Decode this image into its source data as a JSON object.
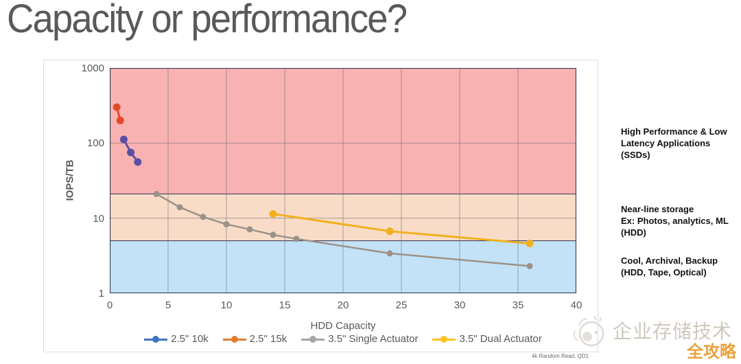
{
  "page": {
    "title": "Capacity or performance?"
  },
  "chart_data": {
    "type": "line",
    "title": "",
    "xlabel": "HDD Capacity",
    "ylabel": "IOPS/TB",
    "x_range": [
      0,
      40
    ],
    "x_ticks": [
      "0",
      "5",
      "10",
      "15",
      "20",
      "25",
      "30",
      "35",
      "40"
    ],
    "y_scale": "log",
    "y_range": [
      1,
      1000
    ],
    "y_ticks": [
      "1000",
      "100",
      "10",
      "1"
    ],
    "grid": "on",
    "legend_position": "bottom",
    "footnote": "4k Random Read, QD1",
    "bands": [
      {
        "name": "ssd-zone",
        "label": "High Performance & Low Latency Applications (SSDs)",
        "from": 21,
        "to": 1000,
        "color": "#f8b2b2"
      },
      {
        "name": "nearline-zone",
        "label": "Near-line storage Ex: Photos, analytics, ML (HDD)",
        "from": 5,
        "to": 21,
        "color": "#f9dcc7"
      },
      {
        "name": "cool-zone",
        "label": "Cool, Archival, Backup (HDD, Tape, Optical)",
        "from": 1,
        "to": 5,
        "color": "#c3e2f7"
      }
    ],
    "series": [
      {
        "name": "2.5\" 10k",
        "color": "#5b4ea5",
        "legend_color": "#3e74c0",
        "line_width": 3,
        "dot_r": 5.5,
        "points": [
          [
            1.2,
            112
          ],
          [
            1.8,
            75
          ],
          [
            2.4,
            56
          ]
        ]
      },
      {
        "name": "2.5\" 15k",
        "color": "#e2492a",
        "legend_color": "#e07e30",
        "line_width": 3,
        "dot_r": 5.5,
        "points": [
          [
            0.6,
            300
          ],
          [
            0.9,
            200
          ]
        ]
      },
      {
        "name": "3.5\" Single Actuator",
        "color": "#9b9289",
        "legend_color": "#a5a5a5",
        "line_width": 2.5,
        "dot_r": 4.5,
        "points": [
          [
            4,
            21
          ],
          [
            6,
            14
          ],
          [
            8,
            10.4
          ],
          [
            10,
            8.3
          ],
          [
            12,
            7.1
          ],
          [
            14,
            6.0
          ],
          [
            16,
            5.3
          ],
          [
            24,
            3.4
          ],
          [
            36,
            2.3
          ]
        ]
      },
      {
        "name": "3.5\" Dual Actuator",
        "color": "#f2b01e",
        "legend_color": "#ffc320",
        "line_width": 3,
        "dot_r": 5.5,
        "points": [
          [
            14,
            11.4
          ],
          [
            24,
            6.7
          ],
          [
            36,
            4.6
          ]
        ]
      }
    ]
  },
  "annotations": {
    "ssd": {
      "lines": [
        "High Performance & Low",
        "Latency Applications",
        "(SSDs)"
      ]
    },
    "nearline": {
      "lines": [
        "Near-line storage",
        "Ex: Photos, analytics, ML",
        "(HDD)"
      ]
    },
    "cool": {
      "lines": [
        "Cool, Archival, Backup",
        "(HDD, Tape, Optical)"
      ]
    }
  },
  "watermark": {
    "brand": "企业存储技术",
    "sub": "全攻略",
    "brand_color": "#cfc8be",
    "sub_color": "#e9a23b"
  },
  "colors": {
    "title": "#595959",
    "axis_text": "#595959",
    "band_border": "#3a3a55",
    "gridline": "rgba(92,94,112,0.5)"
  }
}
